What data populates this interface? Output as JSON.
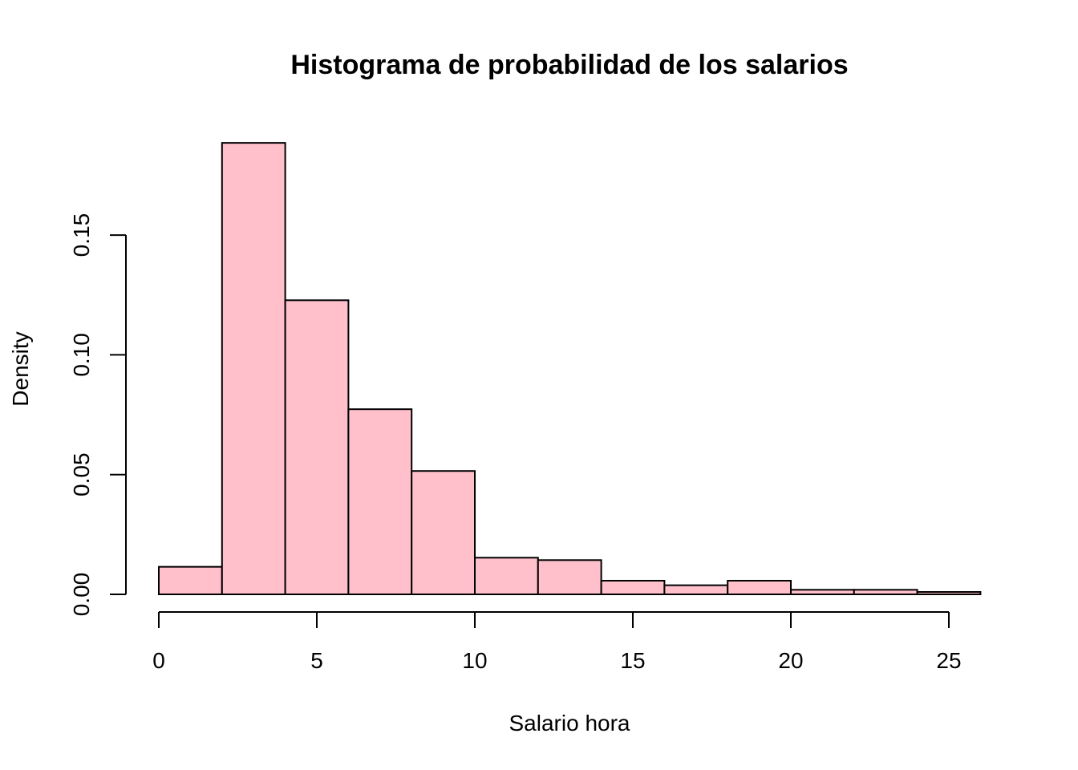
{
  "chart_data": {
    "type": "bar",
    "title": "Histograma de probabilidad de los salarios",
    "xlabel": "Salario hora",
    "ylabel": "Density",
    "bar_color": "#FFC0CB",
    "outline_color": "#000000",
    "bins": [
      {
        "start": 0,
        "end": 2,
        "density": 0.0115
      },
      {
        "start": 2,
        "end": 4,
        "density": 0.1885
      },
      {
        "start": 4,
        "end": 6,
        "density": 0.1228
      },
      {
        "start": 6,
        "end": 8,
        "density": 0.0773
      },
      {
        "start": 8,
        "end": 10,
        "density": 0.0515
      },
      {
        "start": 10,
        "end": 12,
        "density": 0.0153
      },
      {
        "start": 12,
        "end": 14,
        "density": 0.0143
      },
      {
        "start": 14,
        "end": 16,
        "density": 0.0057
      },
      {
        "start": 16,
        "end": 18,
        "density": 0.0038
      },
      {
        "start": 18,
        "end": 20,
        "density": 0.0057
      },
      {
        "start": 20,
        "end": 22,
        "density": 0.0019
      },
      {
        "start": 22,
        "end": 24,
        "density": 0.0019
      },
      {
        "start": 24,
        "end": 26,
        "density": 0.001
      }
    ],
    "x_ticks": [
      0,
      5,
      10,
      15,
      20,
      25
    ],
    "x_tick_labels": [
      "0",
      "5",
      "10",
      "15",
      "20",
      "25"
    ],
    "y_ticks": [
      0,
      0.05,
      0.1,
      0.15
    ],
    "y_tick_labels": [
      "0.00",
      "0.05",
      "0.10",
      "0.15"
    ],
    "xlim": [
      0,
      26
    ],
    "ylim": [
      0,
      0.1885
    ],
    "grid": false,
    "legend": "none"
  }
}
